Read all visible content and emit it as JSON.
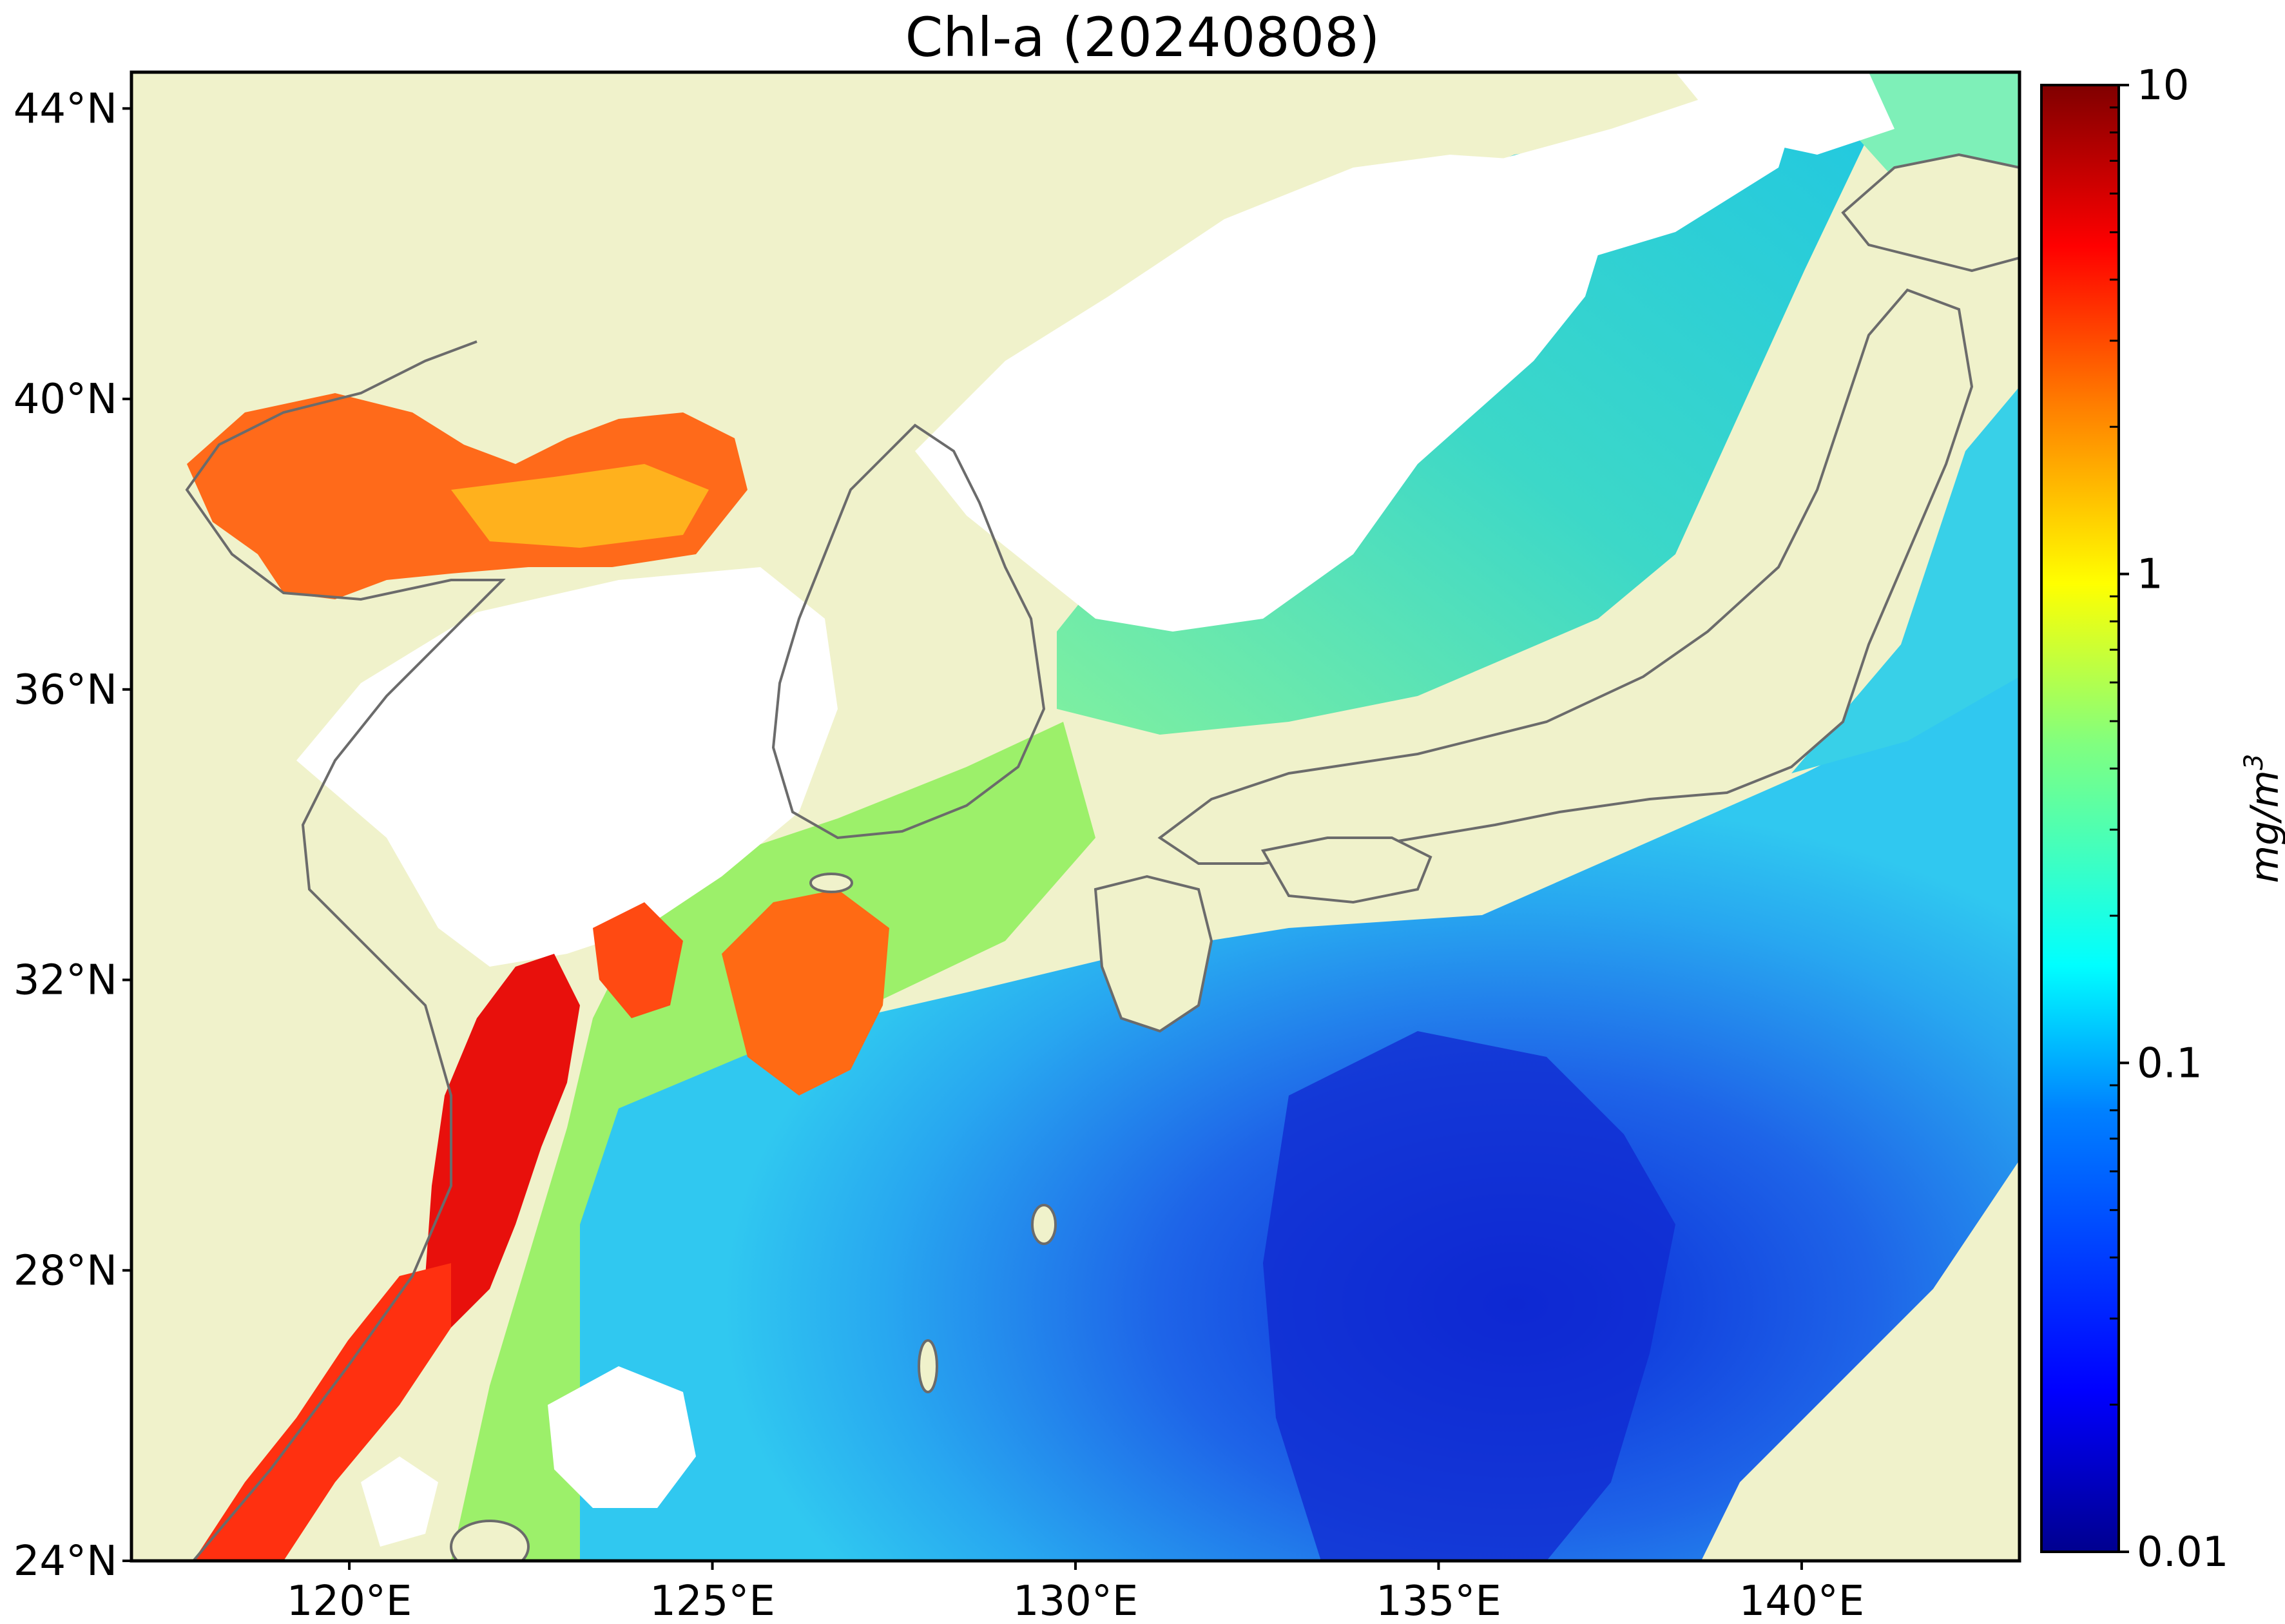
{
  "title": "Chl-a (20240808)",
  "colors": {
    "land": "#f0f2cb",
    "coastline": "#6b6b6b",
    "cloud_mask": "#ffffff",
    "frame": "#000000",
    "colormap_stops": [
      "#00008f",
      "#0000ff",
      "#0080ff",
      "#00ffff",
      "#80ff80",
      "#ffff00",
      "#ff8000",
      "#ff0000",
      "#800000"
    ]
  },
  "map": {
    "projection": "lat-lon",
    "lon_range": [
      117,
      143
    ],
    "lat_range": [
      24,
      44.5
    ],
    "lat_ticks": [
      {
        "value": 44,
        "label": "44°N"
      },
      {
        "value": 40,
        "label": "40°N"
      },
      {
        "value": 36,
        "label": "36°N"
      },
      {
        "value": 32,
        "label": "32°N"
      },
      {
        "value": 28,
        "label": "28°N"
      },
      {
        "value": 24,
        "label": "24°N"
      }
    ],
    "lon_ticks": [
      {
        "value": 120,
        "label": "120°E"
      },
      {
        "value": 125,
        "label": "125°E"
      },
      {
        "value": 130,
        "label": "130°E"
      },
      {
        "value": 135,
        "label": "135°E"
      },
      {
        "value": 140,
        "label": "140°E"
      }
    ]
  },
  "colorbar": {
    "scale": "log",
    "range": [
      0.01,
      10
    ],
    "unit_label": "mg/m",
    "unit_superscript": "3",
    "ticks": [
      {
        "value": 10,
        "label": "10"
      },
      {
        "value": 1,
        "label": "1"
      },
      {
        "value": 0.1,
        "label": "0.1"
      },
      {
        "value": 0.01,
        "label": "0.01"
      }
    ]
  }
}
